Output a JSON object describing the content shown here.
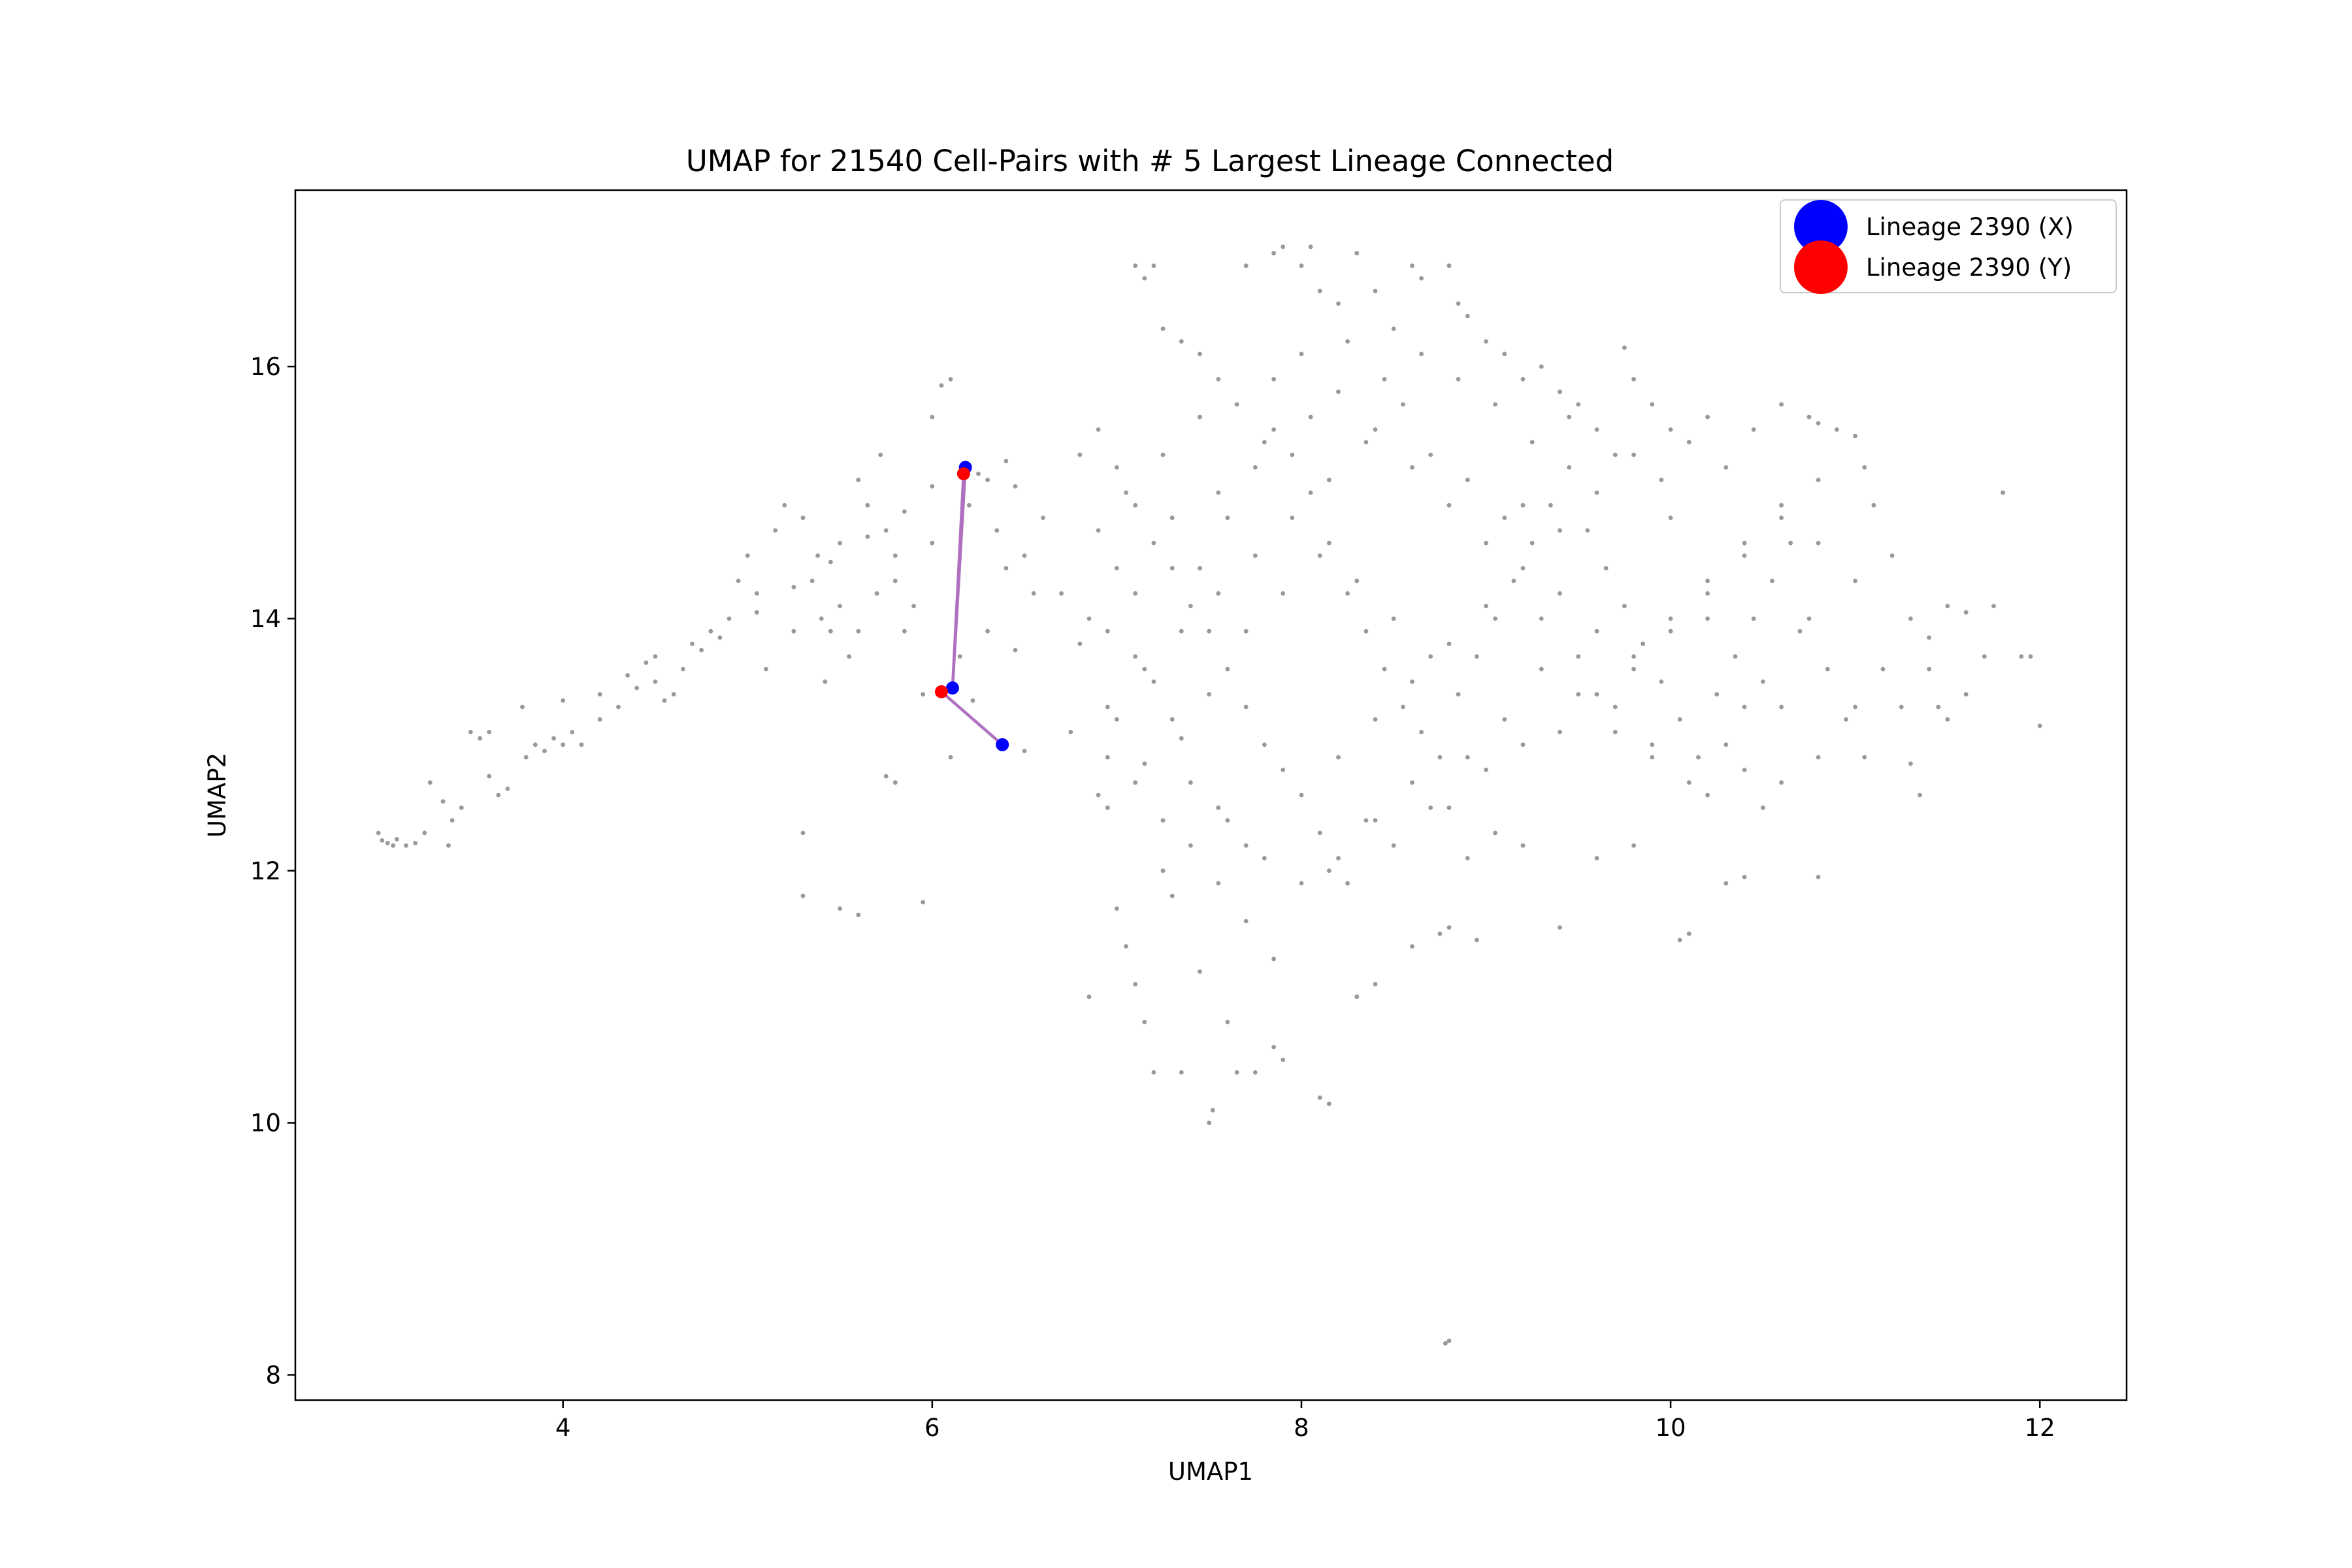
{
  "chart_data": {
    "type": "scatter",
    "title": "UMAP for 21540 Cell-Pairs with # 5 Largest Lineage Connected",
    "xlabel": "UMAP1",
    "ylabel": "UMAP2",
    "xlim": [
      2.55,
      12.47
    ],
    "ylim": [
      7.8,
      17.4
    ],
    "xticks": [
      4,
      6,
      8,
      10,
      12
    ],
    "yticks": [
      8,
      10,
      12,
      14,
      16
    ],
    "grid": false,
    "legend_position": "top-right",
    "legend": [
      {
        "label": "Lineage 2390 (X)",
        "color": "#0000ff"
      },
      {
        "label": "Lineage 2390 (Y)",
        "color": "#ff0000"
      }
    ],
    "background_points_color": "#808080",
    "connection_color": "#b070c0",
    "lineage_points": {
      "X": [
        [
          6.18,
          15.2
        ],
        [
          6.11,
          13.45
        ],
        [
          6.38,
          13.0
        ]
      ],
      "Y": [
        [
          6.17,
          15.15
        ],
        [
          6.05,
          13.42
        ]
      ]
    },
    "connections": [
      [
        [
          6.18,
          15.2
        ],
        [
          6.11,
          13.45
        ]
      ],
      [
        [
          6.17,
          15.15
        ],
        [
          6.11,
          13.45
        ]
      ],
      [
        [
          6.05,
          13.42
        ],
        [
          6.38,
          13.0
        ]
      ]
    ],
    "background_points": [
      [
        3.0,
        12.3
      ],
      [
        3.02,
        12.24
      ],
      [
        3.05,
        12.22
      ],
      [
        3.08,
        12.2
      ],
      [
        3.1,
        12.25
      ],
      [
        3.15,
        12.2
      ],
      [
        3.2,
        12.22
      ],
      [
        3.25,
        12.3
      ],
      [
        3.28,
        12.7
      ],
      [
        3.35,
        12.55
      ],
      [
        3.38,
        12.2
      ],
      [
        3.45,
        12.5
      ],
      [
        3.5,
        13.1
      ],
      [
        3.55,
        13.05
      ],
      [
        3.6,
        13.1
      ],
      [
        3.65,
        12.6
      ],
      [
        3.7,
        12.65
      ],
      [
        3.78,
        13.3
      ],
      [
        3.85,
        13.0
      ],
      [
        3.9,
        12.95
      ],
      [
        3.95,
        13.05
      ],
      [
        4.0,
        13.35
      ],
      [
        4.05,
        13.1
      ],
      [
        4.1,
        13.0
      ],
      [
        4.2,
        13.4
      ],
      [
        4.3,
        13.3
      ],
      [
        4.35,
        13.55
      ],
      [
        4.45,
        13.65
      ],
      [
        4.5,
        13.7
      ],
      [
        4.55,
        13.35
      ],
      [
        4.6,
        13.4
      ],
      [
        4.7,
        13.8
      ],
      [
        4.75,
        13.75
      ],
      [
        4.8,
        13.9
      ],
      [
        4.9,
        14.0
      ],
      [
        4.95,
        14.3
      ],
      [
        5.0,
        14.5
      ],
      [
        5.05,
        14.2
      ],
      [
        5.1,
        13.6
      ],
      [
        5.15,
        14.7
      ],
      [
        5.2,
        14.9
      ],
      [
        5.25,
        13.9
      ],
      [
        5.3,
        14.8
      ],
      [
        5.35,
        14.3
      ],
      [
        5.38,
        14.5
      ],
      [
        5.4,
        14.0
      ],
      [
        5.42,
        13.5
      ],
      [
        5.45,
        13.9
      ],
      [
        5.5,
        14.6
      ],
      [
        5.55,
        13.7
      ],
      [
        5.6,
        15.1
      ],
      [
        5.65,
        14.9
      ],
      [
        5.7,
        14.2
      ],
      [
        5.72,
        15.3
      ],
      [
        5.75,
        14.7
      ],
      [
        5.8,
        14.5
      ],
      [
        5.85,
        13.9
      ],
      [
        5.9,
        14.1
      ],
      [
        5.95,
        13.4
      ],
      [
        6.0,
        15.6
      ],
      [
        6.05,
        15.85
      ],
      [
        6.1,
        15.9
      ],
      [
        6.15,
        13.7
      ],
      [
        6.22,
        13.35
      ],
      [
        6.25,
        15.15
      ],
      [
        6.3,
        15.1
      ],
      [
        6.35,
        14.7
      ],
      [
        6.4,
        15.25
      ],
      [
        6.45,
        15.05
      ],
      [
        6.5,
        14.5
      ],
      [
        6.55,
        14.2
      ],
      [
        6.6,
        14.8
      ],
      [
        5.3,
        12.3
      ],
      [
        5.3,
        11.8
      ],
      [
        5.5,
        11.7
      ],
      [
        5.6,
        11.65
      ],
      [
        5.75,
        12.75
      ],
      [
        5.8,
        12.7
      ],
      [
        5.95,
        11.75
      ],
      [
        6.1,
        12.9
      ],
      [
        6.5,
        12.95
      ],
      [
        6.7,
        14.2
      ],
      [
        6.75,
        13.1
      ],
      [
        6.8,
        13.8
      ],
      [
        6.85,
        11.0
      ],
      [
        6.9,
        12.6
      ],
      [
        6.95,
        12.5
      ],
      [
        7.0,
        11.7
      ],
      [
        7.05,
        11.4
      ],
      [
        7.1,
        11.1
      ],
      [
        7.15,
        10.8
      ],
      [
        7.2,
        10.4
      ],
      [
        7.25,
        12.0
      ],
      [
        7.3,
        11.8
      ],
      [
        7.35,
        10.4
      ],
      [
        7.4,
        12.7
      ],
      [
        7.45,
        11.2
      ],
      [
        7.5,
        10.0
      ],
      [
        7.52,
        10.1
      ],
      [
        7.55,
        12.5
      ],
      [
        7.6,
        10.8
      ],
      [
        7.65,
        10.4
      ],
      [
        7.7,
        12.2
      ],
      [
        7.75,
        10.4
      ],
      [
        7.85,
        10.6
      ],
      [
        7.9,
        10.5
      ],
      [
        8.1,
        10.2
      ],
      [
        8.15,
        10.15
      ],
      [
        8.3,
        11.0
      ],
      [
        8.4,
        11.1
      ],
      [
        8.6,
        11.4
      ],
      [
        8.75,
        11.5
      ],
      [
        8.8,
        11.55
      ],
      [
        8.95,
        11.45
      ],
      [
        8.78,
        8.25
      ],
      [
        8.8,
        8.27
      ],
      [
        7.1,
        16.8
      ],
      [
        7.15,
        16.7
      ],
      [
        7.2,
        16.8
      ],
      [
        7.25,
        16.3
      ],
      [
        7.35,
        16.2
      ],
      [
        7.45,
        16.1
      ],
      [
        7.55,
        15.9
      ],
      [
        7.7,
        16.8
      ],
      [
        7.85,
        16.9
      ],
      [
        7.9,
        16.95
      ],
      [
        8.0,
        16.8
      ],
      [
        8.05,
        16.95
      ],
      [
        8.1,
        16.6
      ],
      [
        8.2,
        16.5
      ],
      [
        8.3,
        16.9
      ],
      [
        8.4,
        16.6
      ],
      [
        8.5,
        16.3
      ],
      [
        8.6,
        16.8
      ],
      [
        8.65,
        16.7
      ],
      [
        8.8,
        16.8
      ],
      [
        8.85,
        16.5
      ],
      [
        8.9,
        16.4
      ],
      [
        9.0,
        16.2
      ],
      [
        9.1,
        16.1
      ],
      [
        9.2,
        15.9
      ],
      [
        9.3,
        16.0
      ],
      [
        9.4,
        15.8
      ],
      [
        9.5,
        15.7
      ],
      [
        9.6,
        15.5
      ],
      [
        9.75,
        16.15
      ],
      [
        9.8,
        15.9
      ],
      [
        9.9,
        15.7
      ],
      [
        10.0,
        15.5
      ],
      [
        10.1,
        15.4
      ],
      [
        10.2,
        15.6
      ],
      [
        10.3,
        15.2
      ],
      [
        10.45,
        15.5
      ],
      [
        10.6,
        15.7
      ],
      [
        10.75,
        15.6
      ],
      [
        10.8,
        15.55
      ],
      [
        10.9,
        15.5
      ],
      [
        11.0,
        15.45
      ],
      [
        11.05,
        15.2
      ],
      [
        11.1,
        14.9
      ],
      [
        11.2,
        14.5
      ],
      [
        11.3,
        14.0
      ],
      [
        11.4,
        13.6
      ],
      [
        11.45,
        13.3
      ],
      [
        11.5,
        13.2
      ],
      [
        11.6,
        13.4
      ],
      [
        11.7,
        13.7
      ],
      [
        11.75,
        14.1
      ],
      [
        11.8,
        15.0
      ],
      [
        11.9,
        13.7
      ],
      [
        11.95,
        13.7
      ],
      [
        12.0,
        13.15
      ],
      [
        11.35,
        12.6
      ],
      [
        11.3,
        12.85
      ],
      [
        10.8,
        11.95
      ],
      [
        10.5,
        12.5
      ],
      [
        10.4,
        11.95
      ],
      [
        10.3,
        11.9
      ],
      [
        10.1,
        11.5
      ],
      [
        10.05,
        11.45
      ],
      [
        9.8,
        12.2
      ],
      [
        9.6,
        12.1
      ],
      [
        9.4,
        11.55
      ],
      [
        9.2,
        12.2
      ],
      [
        9.05,
        12.3
      ],
      [
        8.9,
        12.1
      ],
      [
        8.7,
        12.5
      ],
      [
        8.5,
        12.2
      ],
      [
        8.35,
        12.4
      ],
      [
        8.25,
        11.9
      ],
      [
        8.15,
        12.0
      ],
      [
        8.1,
        12.3
      ],
      [
        7.9,
        12.8
      ],
      [
        7.8,
        13.0
      ],
      [
        7.7,
        13.3
      ],
      [
        7.6,
        13.6
      ],
      [
        7.5,
        13.9
      ],
      [
        7.4,
        14.1
      ],
      [
        7.3,
        14.4
      ],
      [
        7.2,
        14.6
      ],
      [
        7.1,
        14.9
      ],
      [
        7.0,
        15.2
      ],
      [
        6.9,
        15.5
      ],
      [
        6.8,
        15.3
      ],
      [
        7.0,
        14.4
      ],
      [
        7.1,
        13.7
      ],
      [
        7.2,
        13.5
      ],
      [
        7.3,
        13.2
      ],
      [
        7.45,
        14.4
      ],
      [
        7.6,
        14.8
      ],
      [
        7.75,
        15.2
      ],
      [
        7.85,
        15.5
      ],
      [
        7.95,
        15.3
      ],
      [
        8.05,
        15.0
      ],
      [
        8.15,
        14.6
      ],
      [
        8.25,
        14.2
      ],
      [
        8.35,
        13.9
      ],
      [
        8.45,
        13.6
      ],
      [
        8.55,
        13.3
      ],
      [
        8.65,
        13.1
      ],
      [
        8.75,
        12.9
      ],
      [
        8.85,
        13.4
      ],
      [
        8.95,
        13.7
      ],
      [
        9.05,
        14.0
      ],
      [
        9.15,
        14.3
      ],
      [
        9.25,
        14.6
      ],
      [
        9.35,
        14.9
      ],
      [
        9.45,
        15.2
      ],
      [
        9.55,
        14.7
      ],
      [
        9.65,
        14.4
      ],
      [
        9.75,
        14.1
      ],
      [
        9.85,
        13.8
      ],
      [
        9.95,
        13.5
      ],
      [
        10.05,
        13.2
      ],
      [
        10.15,
        12.9
      ],
      [
        10.25,
        13.4
      ],
      [
        10.35,
        13.7
      ],
      [
        10.45,
        14.0
      ],
      [
        10.55,
        14.3
      ],
      [
        10.65,
        14.6
      ],
      [
        10.75,
        14.0
      ],
      [
        10.85,
        13.6
      ],
      [
        10.95,
        13.2
      ],
      [
        11.05,
        12.9
      ],
      [
        10.7,
        13.9
      ],
      [
        10.6,
        13.3
      ],
      [
        10.4,
        12.8
      ],
      [
        10.2,
        12.6
      ],
      [
        9.9,
        12.9
      ],
      [
        9.7,
        13.1
      ],
      [
        9.5,
        13.4
      ],
      [
        9.3,
        13.6
      ],
      [
        9.1,
        13.2
      ],
      [
        8.9,
        12.9
      ],
      [
        8.7,
        13.7
      ],
      [
        8.5,
        14.0
      ],
      [
        8.3,
        14.3
      ],
      [
        8.1,
        14.5
      ],
      [
        7.9,
        14.2
      ],
      [
        7.7,
        13.9
      ],
      [
        7.5,
        13.4
      ],
      [
        7.35,
        13.05
      ],
      [
        7.15,
        12.85
      ],
      [
        6.95,
        13.3
      ],
      [
        6.85,
        14.0
      ],
      [
        6.9,
        14.7
      ],
      [
        7.05,
        15.0
      ],
      [
        7.25,
        15.3
      ],
      [
        7.45,
        15.6
      ],
      [
        7.65,
        15.7
      ],
      [
        7.85,
        15.9
      ],
      [
        8.0,
        16.1
      ],
      [
        8.2,
        15.8
      ],
      [
        8.4,
        15.5
      ],
      [
        8.6,
        15.2
      ],
      [
        8.8,
        14.9
      ],
      [
        9.0,
        14.6
      ],
      [
        9.2,
        14.9
      ],
      [
        9.4,
        14.2
      ],
      [
        9.6,
        13.9
      ],
      [
        9.8,
        13.6
      ],
      [
        10.0,
        13.9
      ],
      [
        10.2,
        14.2
      ],
      [
        10.4,
        14.5
      ],
      [
        10.6,
        14.8
      ],
      [
        10.8,
        15.1
      ],
      [
        9.95,
        15.1
      ],
      [
        9.7,
        15.3
      ],
      [
        9.45,
        15.6
      ],
      [
        9.25,
        15.4
      ],
      [
        9.05,
        15.7
      ],
      [
        8.85,
        15.9
      ],
      [
        8.65,
        16.1
      ],
      [
        8.45,
        15.9
      ],
      [
        8.25,
        16.2
      ],
      [
        8.05,
        15.6
      ],
      [
        7.8,
        15.4
      ],
      [
        7.55,
        15.0
      ],
      [
        7.3,
        14.8
      ],
      [
        7.1,
        14.2
      ],
      [
        6.95,
        13.9
      ],
      [
        7.6,
        12.4
      ],
      [
        7.8,
        12.1
      ],
      [
        8.0,
        12.6
      ],
      [
        8.2,
        12.9
      ],
      [
        8.4,
        13.2
      ],
      [
        8.6,
        13.5
      ],
      [
        8.8,
        13.8
      ],
      [
        9.0,
        14.1
      ],
      [
        9.2,
        14.4
      ],
      [
        9.4,
        14.7
      ],
      [
        9.6,
        15.0
      ],
      [
        9.8,
        15.3
      ],
      [
        10.0,
        14.8
      ],
      [
        10.2,
        14.0
      ],
      [
        10.4,
        13.3
      ],
      [
        10.6,
        12.7
      ],
      [
        10.8,
        12.9
      ],
      [
        11.0,
        13.3
      ],
      [
        11.15,
        13.6
      ],
      [
        11.25,
        13.3
      ],
      [
        11.4,
        13.85
      ],
      [
        11.5,
        14.1
      ],
      [
        11.6,
        14.05
      ],
      [
        8.7,
        15.3
      ],
      [
        8.9,
        15.1
      ],
      [
        9.1,
        14.8
      ],
      [
        9.3,
        14.0
      ],
      [
        9.5,
        13.7
      ],
      [
        9.7,
        13.3
      ],
      [
        9.9,
        13.0
      ],
      [
        10.1,
        12.7
      ],
      [
        10.3,
        13.0
      ],
      [
        10.5,
        13.5
      ],
      [
        8.55,
        15.7
      ],
      [
        8.35,
        15.4
      ],
      [
        8.15,
        15.1
      ],
      [
        7.95,
        14.8
      ],
      [
        7.75,
        14.5
      ],
      [
        7.55,
        14.2
      ],
      [
        7.35,
        13.9
      ],
      [
        7.15,
        13.6
      ],
      [
        7.0,
        13.2
      ],
      [
        6.95,
        12.9
      ],
      [
        7.1,
        12.7
      ],
      [
        7.25,
        12.4
      ],
      [
        7.4,
        12.2
      ],
      [
        7.55,
        11.9
      ],
      [
        7.7,
        11.6
      ],
      [
        7.85,
        11.3
      ],
      [
        8.0,
        11.9
      ],
      [
        8.2,
        12.1
      ],
      [
        8.4,
        12.4
      ],
      [
        8.6,
        12.7
      ],
      [
        8.8,
        12.5
      ],
      [
        9.0,
        12.8
      ],
      [
        9.2,
        13.0
      ],
      [
        9.4,
        13.1
      ],
      [
        9.6,
        13.4
      ],
      [
        9.8,
        13.7
      ],
      [
        10.0,
        14.0
      ],
      [
        10.2,
        14.3
      ],
      [
        10.4,
        14.6
      ],
      [
        10.6,
        14.9
      ],
      [
        10.8,
        14.6
      ],
      [
        11.0,
        14.3
      ],
      [
        4.5,
        13.5
      ],
      [
        4.65,
        13.6
      ],
      [
        4.85,
        13.85
      ],
      [
        5.05,
        14.05
      ],
      [
        5.25,
        14.25
      ],
      [
        5.45,
        14.45
      ],
      [
        5.65,
        14.65
      ],
      [
        5.85,
        14.85
      ],
      [
        6.0,
        15.05
      ],
      [
        3.4,
        12.4
      ],
      [
        3.6,
        12.75
      ],
      [
        3.8,
        12.9
      ],
      [
        4.0,
        13.0
      ],
      [
        4.2,
        13.2
      ],
      [
        4.4,
        13.45
      ],
      [
        5.5,
        14.1
      ],
      [
        5.6,
        13.9
      ],
      [
        5.8,
        14.3
      ],
      [
        6.0,
        14.6
      ],
      [
        6.2,
        14.9
      ],
      [
        6.4,
        14.4
      ],
      [
        6.3,
        13.9
      ],
      [
        6.45,
        13.75
      ]
    ]
  }
}
